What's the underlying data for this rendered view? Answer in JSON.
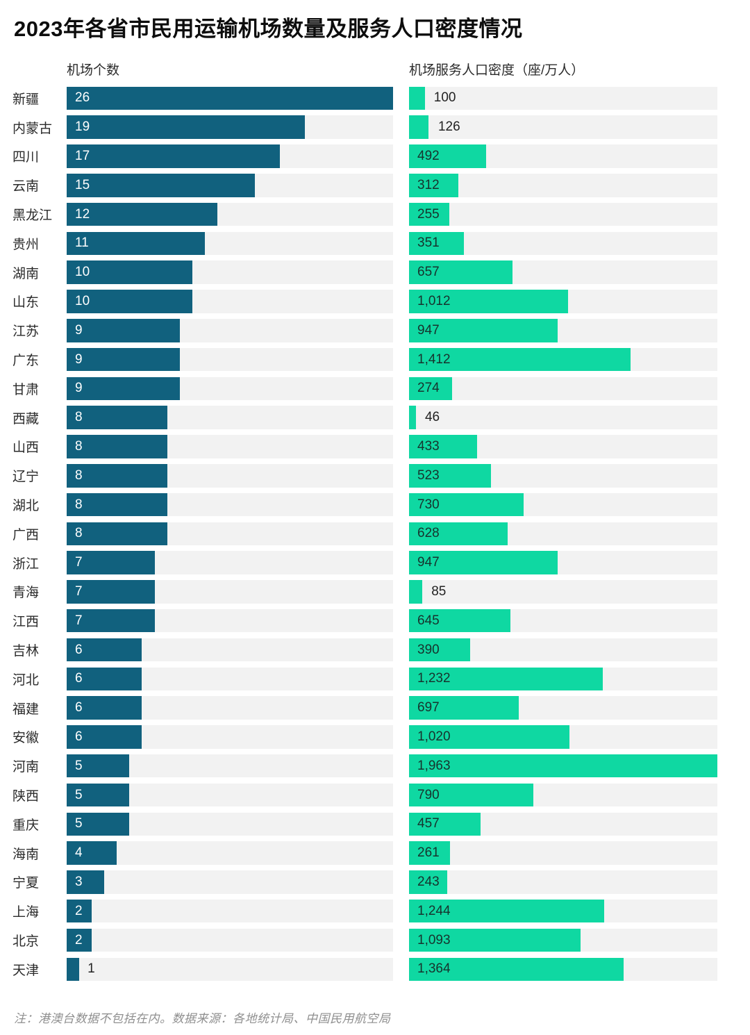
{
  "title": "2023年各省市民用运输机场数量及服务人口密度情况",
  "note": "注：港澳台数据不包括在内。数据来源：各地统计局、中国民用航空局",
  "colors": {
    "airport_bar": "#11617e",
    "density_bar": "#0fd8a2",
    "track": "#f2f2f2",
    "label_on_teal": "#ffffff",
    "label_on_green": "#17332d"
  },
  "chart_data": {
    "type": "bar",
    "orientation": "horizontal",
    "legend_position": "top",
    "grid": false,
    "axes": {
      "airports_header": "机场个数",
      "density_header": "机场服务人口密度（座/万人）",
      "airports_max": 26,
      "density_max": 1963
    },
    "series_names": [
      "机场个数",
      "机场服务人口密度（座/万人）"
    ],
    "categories": [
      "新疆",
      "内蒙古",
      "四川",
      "云南",
      "黑龙江",
      "贵州",
      "湖南",
      "山东",
      "江苏",
      "广东",
      "甘肃",
      "西藏",
      "山西",
      "辽宁",
      "湖北",
      "广西",
      "浙江",
      "青海",
      "江西",
      "吉林",
      "河北",
      "福建",
      "安徽",
      "河南",
      "陕西",
      "重庆",
      "海南",
      "宁夏",
      "上海",
      "北京",
      "天津"
    ],
    "rows": [
      {
        "province": "新疆",
        "airports": 26,
        "airports_label": "26",
        "density": 100,
        "density_label": "100"
      },
      {
        "province": "内蒙古",
        "airports": 19,
        "airports_label": "19",
        "density": 126,
        "density_label": "126"
      },
      {
        "province": "四川",
        "airports": 17,
        "airports_label": "17",
        "density": 492,
        "density_label": "492"
      },
      {
        "province": "云南",
        "airports": 15,
        "airports_label": "15",
        "density": 312,
        "density_label": "312"
      },
      {
        "province": "黑龙江",
        "airports": 12,
        "airports_label": "12",
        "density": 255,
        "density_label": "255"
      },
      {
        "province": "贵州",
        "airports": 11,
        "airports_label": "11",
        "density": 351,
        "density_label": "351"
      },
      {
        "province": "湖南",
        "airports": 10,
        "airports_label": "10",
        "density": 657,
        "density_label": "657"
      },
      {
        "province": "山东",
        "airports": 10,
        "airports_label": "10",
        "density": 1012,
        "density_label": "1,012"
      },
      {
        "province": "江苏",
        "airports": 9,
        "airports_label": "9",
        "density": 947,
        "density_label": "947"
      },
      {
        "province": "广东",
        "airports": 9,
        "airports_label": "9",
        "density": 1412,
        "density_label": "1,412"
      },
      {
        "province": "甘肃",
        "airports": 9,
        "airports_label": "9",
        "density": 274,
        "density_label": "274"
      },
      {
        "province": "西藏",
        "airports": 8,
        "airports_label": "8",
        "density": 46,
        "density_label": "46"
      },
      {
        "province": "山西",
        "airports": 8,
        "airports_label": "8",
        "density": 433,
        "density_label": "433"
      },
      {
        "province": "辽宁",
        "airports": 8,
        "airports_label": "8",
        "density": 523,
        "density_label": "523"
      },
      {
        "province": "湖北",
        "airports": 8,
        "airports_label": "8",
        "density": 730,
        "density_label": "730"
      },
      {
        "province": "广西",
        "airports": 8,
        "airports_label": "8",
        "density": 628,
        "density_label": "628"
      },
      {
        "province": "浙江",
        "airports": 7,
        "airports_label": "7",
        "density": 947,
        "density_label": "947"
      },
      {
        "province": "青海",
        "airports": 7,
        "airports_label": "7",
        "density": 85,
        "density_label": "85"
      },
      {
        "province": "江西",
        "airports": 7,
        "airports_label": "7",
        "density": 645,
        "density_label": "645"
      },
      {
        "province": "吉林",
        "airports": 6,
        "airports_label": "6",
        "density": 390,
        "density_label": "390"
      },
      {
        "province": "河北",
        "airports": 6,
        "airports_label": "6",
        "density": 1232,
        "density_label": "1,232"
      },
      {
        "province": "福建",
        "airports": 6,
        "airports_label": "6",
        "density": 697,
        "density_label": "697"
      },
      {
        "province": "安徽",
        "airports": 6,
        "airports_label": "6",
        "density": 1020,
        "density_label": "1,020"
      },
      {
        "province": "河南",
        "airports": 5,
        "airports_label": "5",
        "density": 1963,
        "density_label": "1,963"
      },
      {
        "province": "陕西",
        "airports": 5,
        "airports_label": "5",
        "density": 790,
        "density_label": "790"
      },
      {
        "province": "重庆",
        "airports": 5,
        "airports_label": "5",
        "density": 457,
        "density_label": "457"
      },
      {
        "province": "海南",
        "airports": 4,
        "airports_label": "4",
        "density": 261,
        "density_label": "261"
      },
      {
        "province": "宁夏",
        "airports": 3,
        "airports_label": "3",
        "density": 243,
        "density_label": "243"
      },
      {
        "province": "上海",
        "airports": 2,
        "airports_label": "2",
        "density": 1244,
        "density_label": "1,244"
      },
      {
        "province": "北京",
        "airports": 2,
        "airports_label": "2",
        "density": 1093,
        "density_label": "1,093"
      },
      {
        "province": "天津",
        "airports": 1,
        "airports_label": "1",
        "density": 1364,
        "density_label": "1,364"
      }
    ]
  }
}
